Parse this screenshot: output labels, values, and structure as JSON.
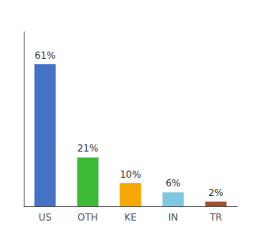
{
  "chart_data": {
    "type": "bar",
    "categories": [
      "US",
      "OTH",
      "KE",
      "IN",
      "TR"
    ],
    "values": [
      61,
      21,
      10,
      6,
      2
    ],
    "value_labels": [
      "61%",
      "21%",
      "10%",
      "6%",
      "2%"
    ],
    "data_labels": true,
    "colors": [
      "#4472c4",
      "#3dbb35",
      "#f5a800",
      "#7ec8e3",
      "#a0522d"
    ],
    "ylim": [
      0,
      75
    ],
    "tick_labels": "x",
    "grid": false
  }
}
